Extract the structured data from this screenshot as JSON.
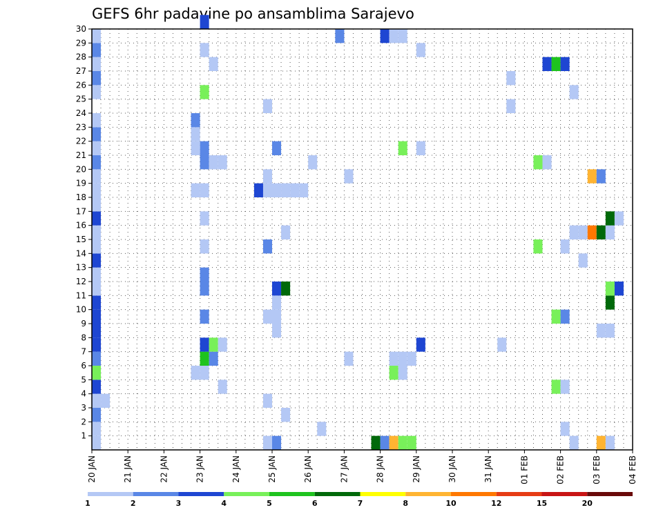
{
  "chart_data": {
    "type": "heatmap",
    "title": "GEFS 6hr padavine po ansamblima Sarajevo",
    "xlabel": "",
    "ylabel": "",
    "x_tick_labels": [
      "20 JAN",
      "21 JAN",
      "22 JAN",
      "23 JAN",
      "24 JAN",
      "25 JAN",
      "26 JAN",
      "27 JAN",
      "28 JAN",
      "29 JAN",
      "30 JAN",
      "31 JAN",
      "01 FEB",
      "02 FEB",
      "03 FEB",
      "04 FEB"
    ],
    "x_range_6h_steps": [
      0,
      60
    ],
    "y_tick_labels": [
      "1",
      "2",
      "3",
      "4",
      "5",
      "6",
      "7",
      "8",
      "9",
      "10",
      "11",
      "12",
      "13",
      "14",
      "15",
      "16",
      "17",
      "18",
      "19",
      "20",
      "21",
      "22",
      "23",
      "24",
      "25",
      "26",
      "27",
      "28",
      "29",
      "30"
    ],
    "y_range_members": [
      0,
      30
    ],
    "grid": true,
    "legend_position": "bottom",
    "legend": {
      "labels": [
        "1",
        "2",
        "3",
        "4",
        "5",
        "6",
        "7",
        "8",
        "10",
        "12",
        "15",
        "20"
      ],
      "colors": [
        "#b4c8f5",
        "#5a87e6",
        "#1e46d2",
        "#78f05a",
        "#1ec31e",
        "#00690a",
        "#ffff00",
        "#ffb432",
        "#ff7800",
        "#e63c14",
        "#c81414",
        "#690a0a"
      ]
    },
    "cells": [
      [
        1,
        1,
        1
      ],
      [
        1,
        2,
        1
      ],
      [
        1,
        3,
        2
      ],
      [
        1,
        4,
        1
      ],
      [
        1,
        5,
        3
      ],
      [
        1,
        6,
        4
      ],
      [
        1,
        7,
        2
      ],
      [
        1,
        8,
        3
      ],
      [
        1,
        9,
        3
      ],
      [
        1,
        10,
        3
      ],
      [
        1,
        11,
        3
      ],
      [
        1,
        12,
        1
      ],
      [
        1,
        13,
        1
      ],
      [
        1,
        14,
        3
      ],
      [
        1,
        15,
        1
      ],
      [
        1,
        16,
        1
      ],
      [
        1,
        17,
        3
      ],
      [
        1,
        18,
        1
      ],
      [
        1,
        19,
        1
      ],
      [
        1,
        20,
        1
      ],
      [
        1,
        21,
        2
      ],
      [
        1,
        22,
        1
      ],
      [
        1,
        23,
        2
      ],
      [
        1,
        24,
        1
      ],
      [
        1,
        26,
        1
      ],
      [
        1,
        27,
        2
      ],
      [
        1,
        28,
        1
      ],
      [
        1,
        29,
        2
      ],
      [
        1,
        30,
        1
      ],
      [
        2,
        4,
        1
      ],
      [
        13,
        7,
        5
      ],
      [
        13,
        8,
        3
      ],
      [
        13,
        10,
        2
      ],
      [
        13,
        12,
        2
      ],
      [
        13,
        13,
        2
      ],
      [
        13,
        15,
        1
      ],
      [
        13,
        17,
        1
      ],
      [
        13,
        19,
        1
      ],
      [
        13,
        21,
        2
      ],
      [
        13,
        22,
        2
      ],
      [
        13,
        26,
        4
      ],
      [
        13,
        29,
        1
      ],
      [
        13,
        31,
        3
      ],
      [
        12,
        6,
        1
      ],
      [
        13,
        6,
        1
      ],
      [
        12,
        19,
        1
      ],
      [
        12,
        22,
        1
      ],
      [
        12,
        23,
        1
      ],
      [
        12,
        24,
        2
      ],
      [
        14,
        7,
        2
      ],
      [
        14,
        8,
        4
      ],
      [
        14,
        21,
        1
      ],
      [
        15,
        21,
        1
      ],
      [
        14,
        28,
        1
      ],
      [
        15,
        5,
        1
      ],
      [
        15,
        8,
        1
      ],
      [
        20,
        1,
        1
      ],
      [
        20,
        4,
        1
      ],
      [
        20,
        10,
        1
      ],
      [
        20,
        15,
        2
      ],
      [
        20,
        19,
        1
      ],
      [
        20,
        20,
        1
      ],
      [
        20,
        25,
        1
      ],
      [
        19,
        19,
        3
      ],
      [
        21,
        1,
        2
      ],
      [
        21,
        9,
        1
      ],
      [
        21,
        10,
        1
      ],
      [
        21,
        11,
        1
      ],
      [
        21,
        12,
        3
      ],
      [
        22,
        12,
        6
      ],
      [
        21,
        19,
        1
      ],
      [
        21,
        22,
        2
      ],
      [
        22,
        19,
        1
      ],
      [
        22,
        16,
        1
      ],
      [
        22,
        3,
        1
      ],
      [
        23,
        19,
        1
      ],
      [
        24,
        19,
        1
      ],
      [
        25,
        21,
        1
      ],
      [
        26,
        2,
        1
      ],
      [
        29,
        7,
        1
      ],
      [
        29,
        20,
        1
      ],
      [
        28,
        30,
        2
      ],
      [
        32,
        1,
        6
      ],
      [
        33,
        1,
        2
      ],
      [
        34,
        1,
        8
      ],
      [
        35,
        1,
        4
      ],
      [
        36,
        1,
        4
      ],
      [
        33,
        30,
        3
      ],
      [
        34,
        30,
        1
      ],
      [
        35,
        30,
        1
      ],
      [
        34,
        6,
        4
      ],
      [
        34,
        7,
        1
      ],
      [
        35,
        7,
        1
      ],
      [
        36,
        7,
        1
      ],
      [
        35,
        6,
        1
      ],
      [
        35,
        22,
        4
      ],
      [
        37,
        8,
        3
      ],
      [
        37,
        22,
        1
      ],
      [
        37,
        29,
        1
      ],
      [
        46,
        8,
        1
      ],
      [
        47,
        25,
        1
      ],
      [
        47,
        27,
        1
      ],
      [
        50,
        21,
        4
      ],
      [
        50,
        15,
        4
      ],
      [
        51,
        21,
        1
      ],
      [
        52,
        5,
        4
      ],
      [
        53,
        5,
        1
      ],
      [
        53,
        2,
        1
      ],
      [
        53,
        10,
        2
      ],
      [
        53,
        15,
        1
      ],
      [
        52,
        10,
        4
      ],
      [
        51,
        28,
        3
      ],
      [
        52,
        28,
        5
      ],
      [
        53,
        28,
        3
      ],
      [
        54,
        1,
        1
      ],
      [
        54,
        16,
        1
      ],
      [
        54,
        26,
        1
      ],
      [
        55,
        14,
        1
      ],
      [
        55,
        16,
        1
      ],
      [
        56,
        16,
        9
      ],
      [
        57,
        16,
        6
      ],
      [
        58,
        16,
        1
      ],
      [
        56,
        20,
        8
      ],
      [
        57,
        20,
        2
      ],
      [
        57,
        1,
        8
      ],
      [
        58,
        1,
        1
      ],
      [
        57,
        9,
        1
      ],
      [
        58,
        9,
        1
      ],
      [
        58,
        11,
        6
      ],
      [
        58,
        12,
        4
      ],
      [
        58,
        17,
        6
      ],
      [
        59,
        12,
        3
      ],
      [
        59,
        17,
        1
      ]
    ]
  }
}
